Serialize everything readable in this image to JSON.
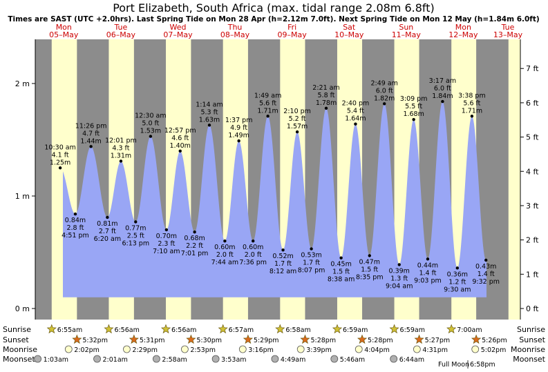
{
  "title": "Port Elizabeth, South Africa (max. tidal range 2.08m 6.8ft)",
  "subtitle": "Times are SAST (UTC +2.0hrs). Last Spring Tide on Mon 28 Apr (h=2.12m 7.0ft). Next Spring Tide on Mon 12 May (h=1.84m 6.0ft)",
  "colors": {
    "night": "#8c8c8c",
    "day": "#ffffcc",
    "water": "#99a6f5",
    "water_edge": "#8090ee",
    "label": "#cc0000"
  },
  "chart_data": {
    "type": "area",
    "ylim_m": [
      0,
      2.3
    ],
    "yticks_m": [
      "0 m",
      "1 m",
      "2 m"
    ],
    "yticks_m_values": [
      0,
      1,
      2
    ],
    "yticks_ft": [
      "0 ft",
      "1 ft",
      "2 ft",
      "3 ft",
      "4 ft",
      "5 ft",
      "6 ft",
      "7 ft"
    ],
    "yticks_ft_values": [
      0,
      1,
      2,
      3,
      4,
      5,
      6,
      7
    ],
    "days": [
      {
        "dow": "Mon",
        "date": "05–May",
        "sunrise": "6:55am",
        "sunset": "5:32pm",
        "moonrise": "2:02pm",
        "moonset": "1:03am"
      },
      {
        "dow": "Tue",
        "date": "06–May",
        "sunrise": "6:56am",
        "sunset": "5:31pm",
        "moonrise": "2:29pm",
        "moonset": "2:01am"
      },
      {
        "dow": "Wed",
        "date": "07–May",
        "sunrise": "6:56am",
        "sunset": "5:30pm",
        "moonrise": "2:53pm",
        "moonset": "2:58am"
      },
      {
        "dow": "Thu",
        "date": "08–May",
        "sunrise": "6:57am",
        "sunset": "5:29pm",
        "moonrise": "3:16pm",
        "moonset": "3:53am"
      },
      {
        "dow": "Fri",
        "date": "09–May",
        "sunrise": "6:58am",
        "sunset": "5:28pm",
        "moonrise": "3:39pm",
        "moonset": "4:49am"
      },
      {
        "dow": "Sat",
        "date": "10–May",
        "sunrise": "6:59am",
        "sunset": "5:28pm",
        "moonrise": "4:04pm",
        "moonset": "5:46am"
      },
      {
        "dow": "Sun",
        "date": "11–May",
        "sunrise": "6:59am",
        "sunset": "5:27pm",
        "moonrise": "4:31pm",
        "moonset": "6:44am"
      },
      {
        "dow": "Mon",
        "date": "12–May",
        "sunrise": "7:00am",
        "sunset": "5:26pm",
        "moonrise": "5:02pm",
        "moonset": ""
      },
      {
        "dow": "Tue",
        "date": "13–May",
        "sunrise": "",
        "sunset": "",
        "moonrise": "",
        "moonset": ""
      }
    ],
    "tides": [
      {
        "day": 0,
        "t": 10.5,
        "type": "H",
        "time": "10:30 am",
        "ft": "4.1 ft",
        "m": 1.25,
        "m_label": "1.25 m"
      },
      {
        "day": 0,
        "t": 16.85,
        "type": "L",
        "time": "4:51 pm",
        "ft": "2.8 ft",
        "m": 0.84,
        "m_label": "0.84 m"
      },
      {
        "day": 0,
        "t": 23.43,
        "type": "H",
        "time": "11:26 pm",
        "ft": "4.7 ft",
        "m": 1.44,
        "m_label": "1.44 m"
      },
      {
        "day": 1,
        "t": 6.33,
        "type": "L",
        "time": "6:20 am",
        "ft": "2.7 ft",
        "m": 0.81,
        "m_label": "0.81 m"
      },
      {
        "day": 1,
        "t": 12.02,
        "type": "H",
        "time": "12:01 pm",
        "ft": "4.3 ft",
        "m": 1.31,
        "m_label": "1.31 m"
      },
      {
        "day": 1,
        "t": 18.22,
        "type": "L",
        "time": "6:13 pm",
        "ft": "2.5 ft",
        "m": 0.77,
        "m_label": "0.77 m"
      },
      {
        "day": 2,
        "t": 0.5,
        "type": "H",
        "time": "12:30 am",
        "ft": "5.0 ft",
        "m": 1.53,
        "m_label": "1.53 m"
      },
      {
        "day": 2,
        "t": 7.17,
        "type": "L",
        "time": "7:10 am",
        "ft": "2.3 ft",
        "m": 0.7,
        "m_label": "0.70 m"
      },
      {
        "day": 2,
        "t": 12.95,
        "type": "H",
        "time": "12:57 pm",
        "ft": "4.6 ft",
        "m": 1.4,
        "m_label": "1.40 m"
      },
      {
        "day": 2,
        "t": 19.02,
        "type": "L",
        "time": "7:01 pm",
        "ft": "2.2 ft",
        "m": 0.68,
        "m_label": "0.68 m"
      },
      {
        "day": 3,
        "t": 1.23,
        "type": "H",
        "time": "1:14 am",
        "ft": "5.3 ft",
        "m": 1.63,
        "m_label": "1.63 m"
      },
      {
        "day": 3,
        "t": 7.73,
        "type": "L",
        "time": "7:44 am",
        "ft": "2.0 ft",
        "m": 0.6,
        "m_label": "0.60 m"
      },
      {
        "day": 3,
        "t": 13.62,
        "type": "H",
        "time": "1:37 pm",
        "ft": "4.9 ft",
        "m": 1.49,
        "m_label": "1.49 m"
      },
      {
        "day": 3,
        "t": 19.6,
        "type": "L",
        "time": "7:36 pm",
        "ft": "2.0 ft",
        "m": 0.6,
        "m_label": "0.60 m"
      },
      {
        "day": 4,
        "t": 1.82,
        "type": "H",
        "time": "1:49 am",
        "ft": "5.6 ft",
        "m": 1.71,
        "m_label": "1.71 m"
      },
      {
        "day": 4,
        "t": 8.2,
        "type": "L",
        "time": "8:12 am",
        "ft": "1.7 ft",
        "m": 0.52,
        "m_label": "0.52 m"
      },
      {
        "day": 4,
        "t": 14.17,
        "type": "H",
        "time": "2:10 pm",
        "ft": "5.2 ft",
        "m": 1.57,
        "m_label": "1.57 m"
      },
      {
        "day": 4,
        "t": 20.12,
        "type": "L",
        "time": "8:07 pm",
        "ft": "1.7 ft",
        "m": 0.53,
        "m_label": "0.53 m"
      },
      {
        "day": 5,
        "t": 2.35,
        "type": "H",
        "time": "2:21 am",
        "ft": "5.8 ft",
        "m": 1.78,
        "m_label": "1.78 m"
      },
      {
        "day": 5,
        "t": 8.63,
        "type": "L",
        "time": "8:38 am",
        "ft": "1.5 ft",
        "m": 0.45,
        "m_label": "0.45 m"
      },
      {
        "day": 5,
        "t": 14.67,
        "type": "H",
        "time": "2:40 pm",
        "ft": "5.4 ft",
        "m": 1.64,
        "m_label": "1.64 m"
      },
      {
        "day": 5,
        "t": 20.58,
        "type": "L",
        "time": "8:35 pm",
        "ft": "1.5 ft",
        "m": 0.47,
        "m_label": "0.47 m"
      },
      {
        "day": 6,
        "t": 2.82,
        "type": "H",
        "time": "2:49 am",
        "ft": "6.0 ft",
        "m": 1.82,
        "m_label": "1.82 m"
      },
      {
        "day": 6,
        "t": 9.07,
        "type": "L",
        "time": "9:04 am",
        "ft": "1.3 ft",
        "m": 0.39,
        "m_label": "0.39 m"
      },
      {
        "day": 6,
        "t": 15.15,
        "type": "H",
        "time": "3:09 pm",
        "ft": "5.5 ft",
        "m": 1.68,
        "m_label": "1.68 m"
      },
      {
        "day": 6,
        "t": 21.05,
        "type": "L",
        "time": "9:03 pm",
        "ft": "1.4 ft",
        "m": 0.44,
        "m_label": "0.44 m"
      },
      {
        "day": 7,
        "t": 3.28,
        "type": "H",
        "time": "3:17 am",
        "ft": "6.0 ft",
        "m": 1.84,
        "m_label": "1.84 m"
      },
      {
        "day": 7,
        "t": 9.5,
        "type": "L",
        "time": "9:30 am",
        "ft": "1.2 ft",
        "m": 0.36,
        "m_label": "0.36 m"
      },
      {
        "day": 7,
        "t": 15.63,
        "type": "H",
        "time": "3:38 pm",
        "ft": "5.6 ft",
        "m": 1.71,
        "m_label": "1.71 m"
      },
      {
        "day": 7,
        "t": 21.53,
        "type": "L",
        "time": "9:32 pm",
        "ft": "1.4 ft",
        "m": 0.43,
        "m_label": "0.43 m"
      }
    ]
  },
  "row_labels": {
    "sunrise": "Sunrise",
    "sunset": "Sunset",
    "moonrise": "Moonrise",
    "moonset": "Moonset"
  },
  "full_moon": {
    "label": "Full Moon",
    "time": "6:58pm"
  }
}
